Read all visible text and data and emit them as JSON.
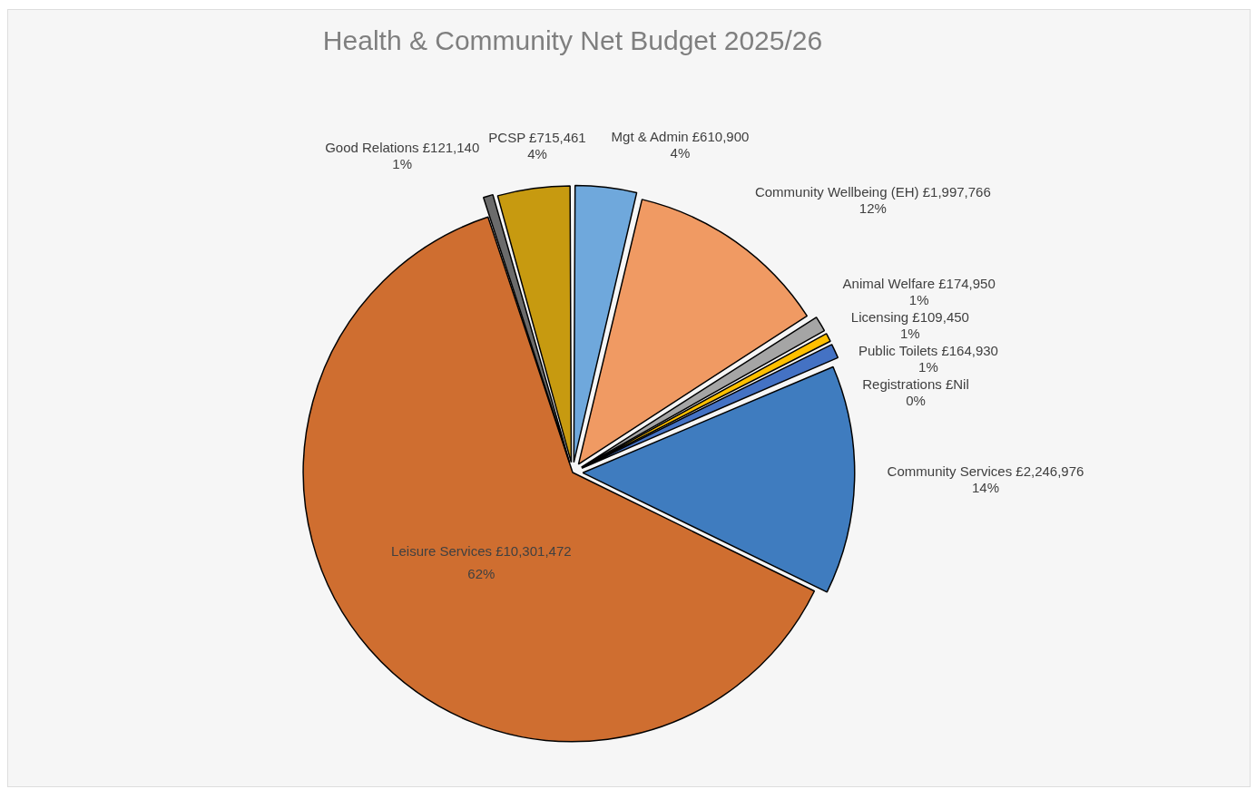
{
  "chart_data": {
    "type": "pie",
    "title": "Health & Community Net Budget 2025/26",
    "categories": [
      "Mgt & Admin",
      "Community Wellbeing (EH)",
      "Animal Welfare",
      "Licensing",
      "Public Toilets",
      "Registrations",
      "Community Services",
      "Leisure Services",
      "Good Relations",
      "PCSP"
    ],
    "values": [
      610900,
      1997766,
      174950,
      109450,
      164930,
      0,
      2246976,
      10301472,
      121140,
      715461
    ],
    "value_labels": [
      "£610,900\n4%",
      "£1,997,766\n12%",
      "£174,950\n1%",
      "£109,450\n1%",
      "£164,930\n1%",
      "£Nil\n0%",
      "£2,246,976\n14%",
      "£10,301,472\n62%",
      "£121,140\n1%",
      "£715,461\n4%"
    ],
    "colors": [
      "#6fa8dc",
      "#f09a63",
      "#a5a5a5",
      "#ffc000",
      "#4472c4",
      "#264478",
      "#3f7cbf",
      "#cf6e30",
      "#6b6b6b",
      "#c79a10"
    ],
    "legend": false
  }
}
